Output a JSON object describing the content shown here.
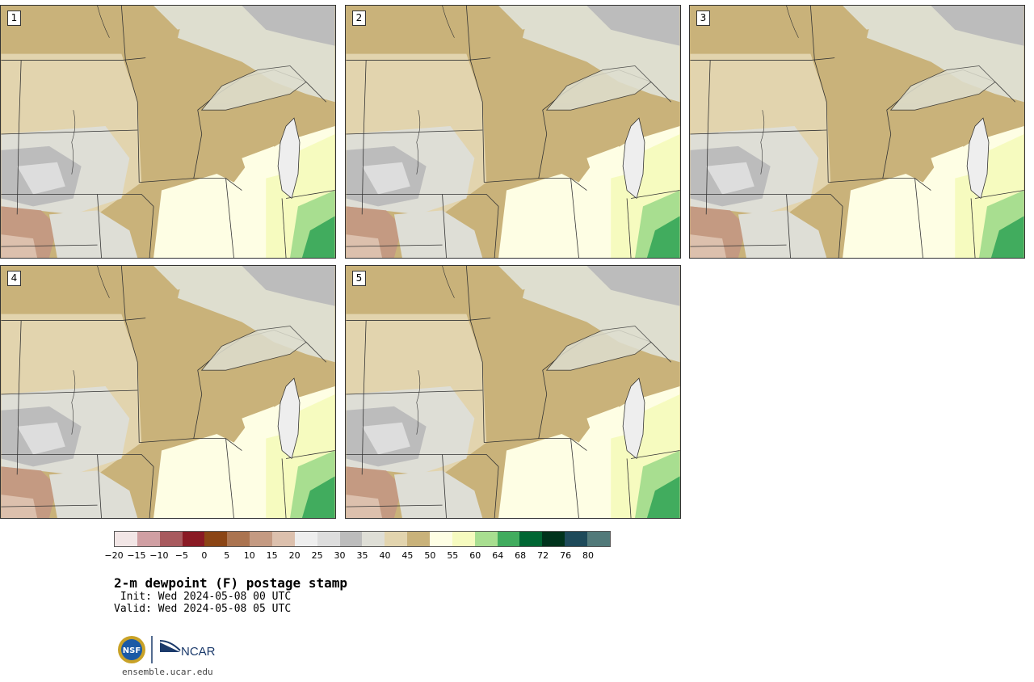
{
  "panels": [
    {
      "label": "1"
    },
    {
      "label": "2"
    },
    {
      "label": "3"
    },
    {
      "label": "4"
    },
    {
      "label": "5"
    }
  ],
  "colorbar": {
    "colors": [
      "#f2e6e6",
      "#d09fa3",
      "#a85a5e",
      "#8a1a24",
      "#8b4515",
      "#ab7450",
      "#c49a82",
      "#dcc0ad",
      "#eeeeee",
      "#dddddd",
      "#bcbcbc",
      "#deded6",
      "#e2d4ae",
      "#c9b27a",
      "#fefee4",
      "#f6fbbf",
      "#a8de90",
      "#41ac5e",
      "#006633",
      "#00331c",
      "#1e4a5a",
      "#527a7a"
    ],
    "tick_labels": [
      "−20",
      "−15",
      "−10",
      "−5",
      "0",
      "5",
      "10",
      "15",
      "20",
      "25",
      "30",
      "35",
      "40",
      "45",
      "50",
      "55",
      "60",
      "64",
      "68",
      "72",
      "76",
      "80"
    ]
  },
  "title": "2-m dewpoint (F) postage stamp",
  "init": " Init: Wed 2024-05-08 00 UTC",
  "valid": "Valid: Wed 2024-05-08 05 UTC",
  "logos": {
    "nsf_text": "NSF",
    "ncar_text": "NCAR"
  },
  "website": "ensemble.ucar.edu"
}
